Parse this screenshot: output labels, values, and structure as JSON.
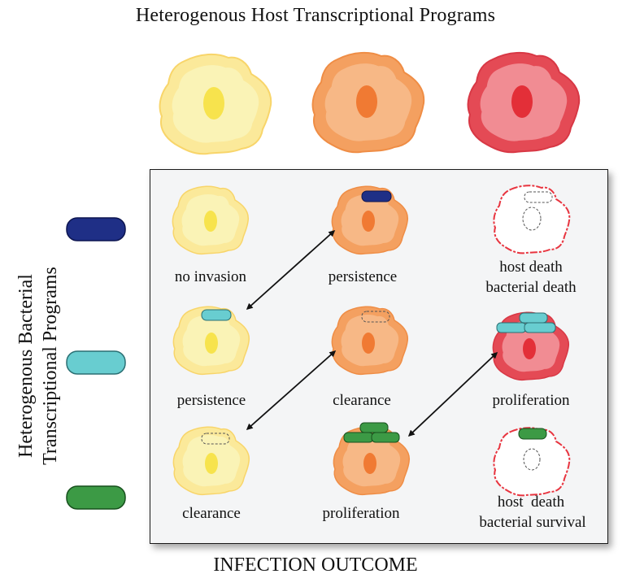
{
  "title_top": "Heterogenous Host Transcriptional Programs",
  "title_side": [
    "Heterogenous Bacterial",
    "Transcriptional Programs"
  ],
  "title_bottom": "INFECTION OUTCOME",
  "colors": {
    "yellow_outer": "#fbe99a",
    "yellow_inner": "#faf3b6",
    "yellow_nucleus": "#f7e34d",
    "orange_outer": "#f4a060",
    "orange_inner": "#f7b886",
    "orange_nucleus": "#f07a33",
    "red_outer": "#e44a55",
    "red_inner": "#f18c93",
    "red_nucleus": "#e32f38",
    "bact_navy": "#1f2f86",
    "bact_cyan": "#68cdd0",
    "bact_green": "#3c9a45"
  },
  "outcomes": {
    "r1c1": "no invasion",
    "r1c2": "persistence",
    "r1c3_l1": "host death",
    "r1c3_l2": "bacterial death",
    "r2c1": "persistence",
    "r2c2": "clearance",
    "r2c3": "proliferation",
    "r3c1": "clearance",
    "r3c2": "proliferation",
    "r3c3_l1": "host  death",
    "r3c3_l2": "bacterial survival"
  }
}
